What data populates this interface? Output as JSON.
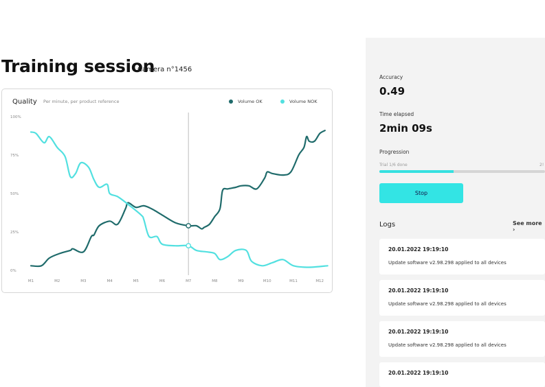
{
  "header": {
    "title": "Training session",
    "camera": "Camera n°1456"
  },
  "chart_card": {
    "title": "Quality",
    "subtitle": "Per minute, per product reference",
    "legend": [
      {
        "name": "Volume OK",
        "color": "#1f6b6b"
      },
      {
        "name": "Volume NOK",
        "color": "#52e0e0"
      }
    ]
  },
  "chart_data": {
    "type": "line",
    "x": [
      "M1",
      "M2",
      "M3",
      "M4",
      "M5",
      "M6",
      "M7",
      "M8",
      "M9",
      "M10",
      "M11",
      "M12"
    ],
    "ylim": [
      0,
      100
    ],
    "yticks": [
      "100%",
      "75%",
      "50%",
      "25%",
      "0%"
    ],
    "grid": false,
    "cursor_x": "M7",
    "series": [
      {
        "name": "Volume OK",
        "color": "#1f6b6b",
        "points": [
          [
            0,
            3
          ],
          [
            0.4,
            3
          ],
          [
            0.7,
            8
          ],
          [
            1.1,
            11
          ],
          [
            1.5,
            13
          ],
          [
            1.6,
            14
          ],
          [
            2,
            12
          ],
          [
            2.3,
            22
          ],
          [
            2.4,
            23
          ],
          [
            2.6,
            29
          ],
          [
            3,
            32
          ],
          [
            3.3,
            30
          ],
          [
            3.6,
            40
          ],
          [
            3.7,
            44
          ],
          [
            4,
            41
          ],
          [
            4.3,
            42
          ],
          [
            4.6,
            40
          ],
          [
            5,
            36
          ],
          [
            5.5,
            31
          ],
          [
            6,
            29
          ],
          [
            6.3,
            29
          ],
          [
            6.5,
            27
          ],
          [
            6.6,
            28
          ],
          [
            6.8,
            30
          ],
          [
            7,
            35
          ],
          [
            7.2,
            40
          ],
          [
            7.3,
            52
          ],
          [
            7.5,
            53
          ],
          [
            7.8,
            54
          ],
          [
            8,
            55
          ],
          [
            8.3,
            55
          ],
          [
            8.6,
            53
          ],
          [
            8.9,
            60
          ],
          [
            9,
            64
          ],
          [
            9.2,
            63
          ],
          [
            9.6,
            62
          ],
          [
            9.9,
            64
          ],
          [
            10.2,
            75
          ],
          [
            10.4,
            80
          ],
          [
            10.5,
            87
          ],
          [
            10.6,
            84
          ],
          [
            10.8,
            84
          ],
          [
            11,
            89
          ],
          [
            11.2,
            91
          ]
        ]
      },
      {
        "name": "Volume NOK",
        "color": "#52e0e0",
        "points": [
          [
            0,
            90
          ],
          [
            0.2,
            89
          ],
          [
            0.5,
            83
          ],
          [
            0.7,
            87
          ],
          [
            1,
            80
          ],
          [
            1.3,
            74
          ],
          [
            1.5,
            61
          ],
          [
            1.7,
            63
          ],
          [
            1.9,
            70
          ],
          [
            2.2,
            67
          ],
          [
            2.4,
            59
          ],
          [
            2.6,
            54
          ],
          [
            2.9,
            56
          ],
          [
            3,
            50
          ],
          [
            3.3,
            48
          ],
          [
            3.7,
            43
          ],
          [
            4.2,
            36
          ],
          [
            4.3,
            33
          ],
          [
            4.5,
            22
          ],
          [
            4.8,
            22
          ],
          [
            5,
            17
          ],
          [
            5.5,
            16
          ],
          [
            6,
            16
          ],
          [
            6.3,
            13
          ],
          [
            6.7,
            12
          ],
          [
            7,
            11
          ],
          [
            7.2,
            7
          ],
          [
            7.5,
            9
          ],
          [
            7.8,
            13
          ],
          [
            8.2,
            13
          ],
          [
            8.4,
            6
          ],
          [
            8.8,
            3
          ],
          [
            9.2,
            5
          ],
          [
            9.6,
            7
          ],
          [
            10,
            3
          ],
          [
            10.6,
            2
          ],
          [
            11.3,
            3
          ]
        ]
      }
    ]
  },
  "metrics": {
    "accuracy_label": "Accuracy",
    "accuracy_value": "0.49",
    "time_label": "Time elapsed",
    "time_value": "2min 09s",
    "progress_label": "Progression",
    "progress_text": "Trial 1/6 done",
    "progress_right": "2!",
    "progress_fraction": 0.45
  },
  "actions": {
    "stop_label": "Stop"
  },
  "logs": {
    "title": "Logs",
    "see_more": "See more",
    "items": [
      {
        "time": "20.01.2022 19:19:10",
        "message": "Update software v2.98.298 applied to all devices"
      },
      {
        "time": "20.01.2022 19:19:10",
        "message": "Update software v2.98.298 applied to all devices"
      },
      {
        "time": "20.01.2022 19:19:10",
        "message": "Update software v2.98.298 applied to all devices"
      },
      {
        "time": "20.01.2022 19:19:10",
        "message": ""
      }
    ]
  }
}
